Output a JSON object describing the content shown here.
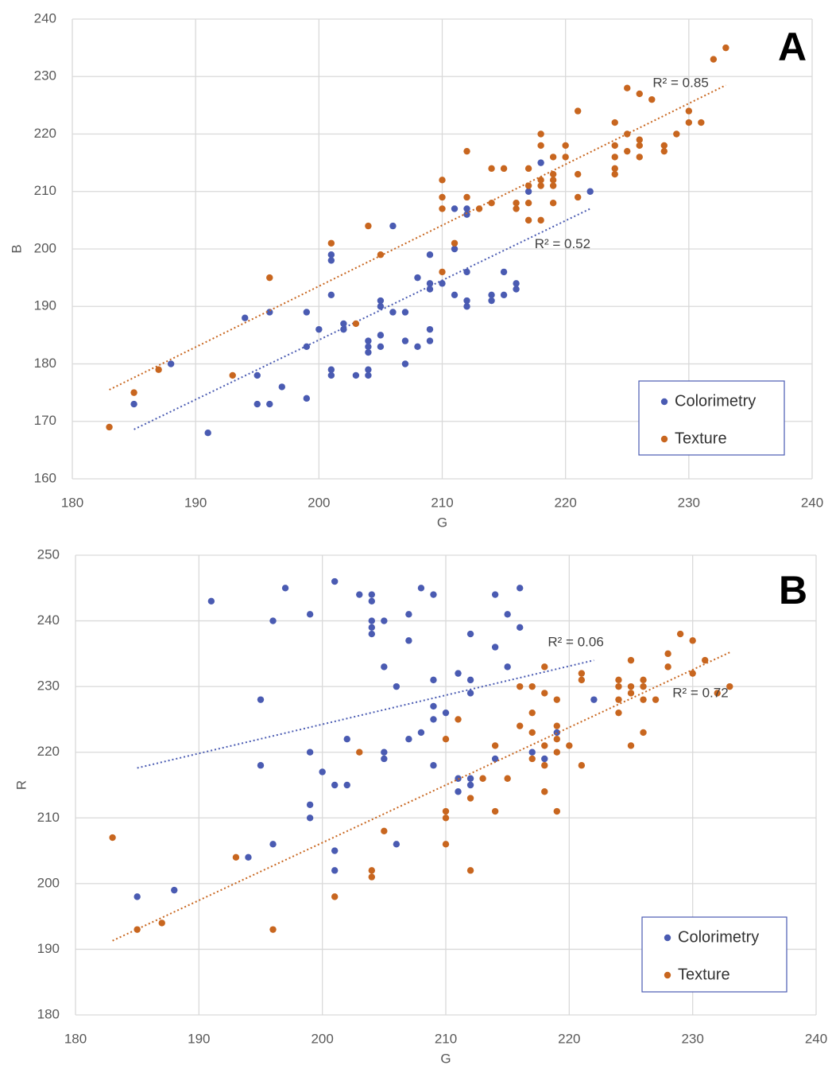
{
  "chart_data": [
    {
      "type": "scatter",
      "panel_label": "A",
      "xlabel": "G",
      "ylabel": "B",
      "xlim": [
        180,
        240
      ],
      "ylim": [
        160,
        240
      ],
      "xticks": [
        180,
        190,
        200,
        210,
        220,
        230,
        240
      ],
      "yticks": [
        160,
        170,
        180,
        190,
        200,
        210,
        220,
        230,
        240
      ],
      "grid": true,
      "legend": "bottom-right",
      "series": [
        {
          "name": "Colorimetry",
          "color": "#4a5bb2",
          "x": [
            185,
            188,
            191,
            194,
            195,
            195,
            196,
            196,
            197,
            199,
            199,
            199,
            200,
            201,
            201,
            201,
            201,
            201,
            202,
            202,
            203,
            204,
            204,
            204,
            204,
            204,
            205,
            205,
            205,
            205,
            206,
            206,
            207,
            207,
            207,
            208,
            208,
            209,
            209,
            209,
            209,
            209,
            210,
            211,
            211,
            211,
            212,
            212,
            212,
            212,
            212,
            214,
            214,
            215,
            215,
            216,
            216,
            217,
            218,
            222
          ],
          "y": [
            173,
            180,
            168,
            188,
            178,
            173,
            189,
            173,
            176,
            189,
            183,
            174,
            186,
            199,
            198,
            192,
            179,
            178,
            187,
            186,
            178,
            184,
            183,
            182,
            179,
            178,
            191,
            190,
            185,
            183,
            204,
            189,
            189,
            184,
            180,
            195,
            183,
            199,
            194,
            193,
            186,
            184,
            194,
            207,
            200,
            192,
            207,
            206,
            196,
            191,
            190,
            192,
            191,
            196,
            192,
            194,
            193,
            210,
            215,
            210
          ],
          "trendline": {
            "x": [
              185,
              222
            ],
            "y": [
              168.6,
              207
            ]
          },
          "r2_label": "R² = 0.52"
        },
        {
          "name": "Texture",
          "color": "#c8661f",
          "x": [
            183,
            185,
            187,
            193,
            196,
            201,
            203,
            204,
            205,
            210,
            210,
            210,
            210,
            211,
            212,
            212,
            213,
            214,
            214,
            215,
            216,
            216,
            217,
            217,
            217,
            217,
            218,
            218,
            218,
            218,
            218,
            219,
            219,
            219,
            219,
            219,
            220,
            220,
            221,
            221,
            221,
            224,
            224,
            224,
            224,
            224,
            225,
            225,
            225,
            226,
            226,
            226,
            226,
            227,
            228,
            228,
            229,
            230,
            230,
            231,
            232,
            233
          ],
          "y": [
            169,
            175,
            179,
            178,
            195,
            201,
            187,
            204,
            199,
            196,
            212,
            209,
            207,
            201,
            217,
            209,
            207,
            214,
            208,
            214,
            208,
            207,
            214,
            211,
            208,
            205,
            220,
            218,
            212,
            211,
            205,
            216,
            213,
            212,
            211,
            208,
            218,
            216,
            224,
            213,
            209,
            222,
            218,
            216,
            214,
            213,
            228,
            220,
            217,
            227,
            219,
            218,
            216,
            226,
            218,
            217,
            220,
            224,
            222,
            222,
            233,
            235
          ],
          "trendline": {
            "x": [
              183,
              233
            ],
            "y": [
              175.5,
              228.5
            ]
          },
          "r2_label": "R² = 0.85"
        }
      ]
    },
    {
      "type": "scatter",
      "panel_label": "B",
      "xlabel": "G",
      "ylabel": "R",
      "xlim": [
        180,
        240
      ],
      "ylim": [
        180,
        250
      ],
      "xticks": [
        180,
        190,
        200,
        210,
        220,
        230,
        240
      ],
      "yticks": [
        180,
        190,
        200,
        210,
        220,
        230,
        240,
        250
      ],
      "grid": true,
      "legend": "bottom-right",
      "series": [
        {
          "name": "Colorimetry",
          "color": "#4a5bb2",
          "x": [
            185,
            188,
            191,
            194,
            195,
            195,
            196,
            196,
            197,
            199,
            199,
            199,
            199,
            200,
            201,
            201,
            201,
            201,
            202,
            202,
            203,
            204,
            204,
            204,
            204,
            204,
            205,
            205,
            205,
            205,
            206,
            206,
            207,
            207,
            207,
            208,
            208,
            209,
            209,
            209,
            209,
            209,
            210,
            211,
            211,
            211,
            212,
            212,
            212,
            212,
            212,
            214,
            214,
            214,
            215,
            215,
            216,
            216,
            217,
            218,
            219,
            222
          ],
          "y": [
            198,
            199,
            243,
            204,
            228,
            218,
            240,
            206,
            245,
            241,
            220,
            212,
            210,
            217,
            246,
            215,
            205,
            202,
            222,
            215,
            244,
            244,
            243,
            240,
            239,
            238,
            240,
            233,
            220,
            219,
            230,
            206,
            241,
            237,
            222,
            245,
            223,
            244,
            231,
            227,
            225,
            218,
            226,
            232,
            216,
            214,
            238,
            231,
            229,
            216,
            215,
            244,
            236,
            219,
            241,
            233,
            245,
            239,
            220,
            219,
            223,
            228
          ],
          "trendline": {
            "x": [
              185,
              222
            ],
            "y": [
              217.6,
              234
            ]
          },
          "r2_label": "R² = 0.06"
        },
        {
          "name": "Texture",
          "color": "#c8661f",
          "x": [
            183,
            185,
            187,
            193,
            196,
            201,
            203,
            204,
            204,
            205,
            210,
            210,
            210,
            210,
            211,
            212,
            212,
            213,
            214,
            214,
            215,
            216,
            216,
            217,
            217,
            217,
            217,
            218,
            218,
            218,
            218,
            218,
            219,
            219,
            219,
            219,
            219,
            220,
            221,
            221,
            221,
            224,
            224,
            224,
            224,
            225,
            225,
            225,
            225,
            226,
            226,
            226,
            226,
            227,
            228,
            228,
            229,
            230,
            230,
            231,
            232,
            233
          ],
          "y": [
            207,
            193,
            194,
            204,
            193,
            198,
            220,
            202,
            201,
            208,
            222,
            211,
            210,
            206,
            225,
            213,
            202,
            216,
            221,
            211,
            216,
            230,
            224,
            230,
            226,
            223,
            219,
            233,
            229,
            221,
            218,
            214,
            228,
            224,
            222,
            220,
            211,
            221,
            232,
            231,
            218,
            231,
            230,
            228,
            226,
            234,
            230,
            229,
            221,
            231,
            230,
            228,
            223,
            228,
            235,
            233,
            238,
            237,
            232,
            234,
            229,
            230
          ],
          "trendline": {
            "x": [
              183,
              233
            ],
            "y": [
              191.3,
              235.2
            ]
          },
          "r2_label": "R² = 0.72"
        }
      ]
    }
  ]
}
